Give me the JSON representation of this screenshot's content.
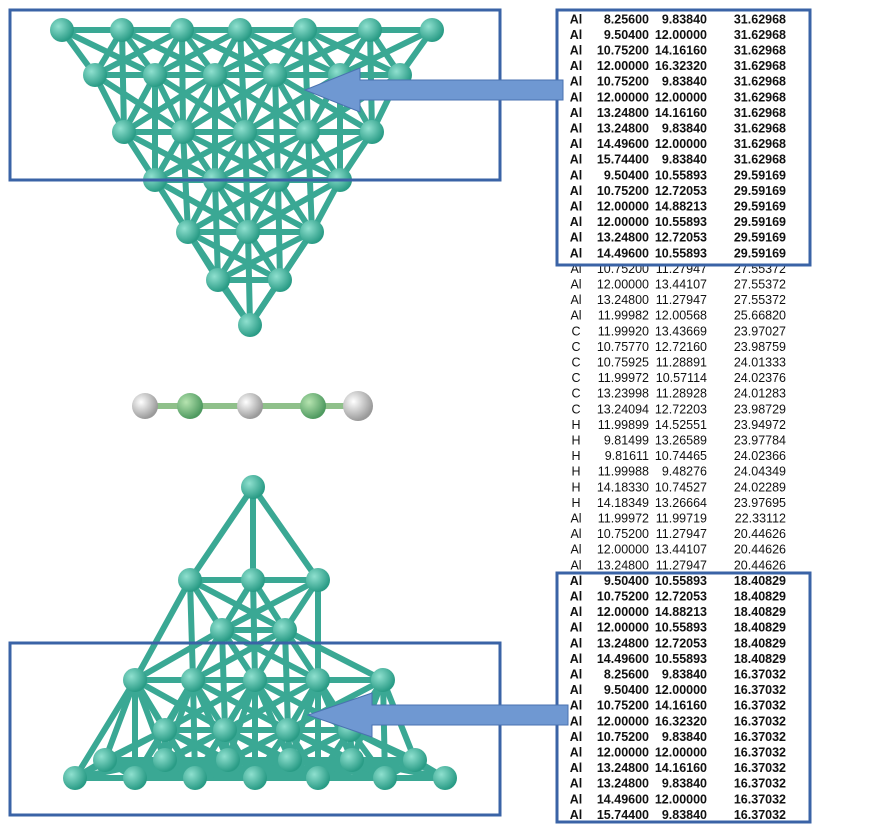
{
  "top_block": {
    "rows": [
      [
        "Al",
        "8.25600",
        "9.83840",
        "31.62968"
      ],
      [
        "Al",
        "9.50400",
        "12.00000",
        "31.62968"
      ],
      [
        "Al",
        "10.75200",
        "14.16160",
        "31.62968"
      ],
      [
        "Al",
        "12.00000",
        "16.32320",
        "31.62968"
      ],
      [
        "Al",
        "10.75200",
        "9.83840",
        "31.62968"
      ],
      [
        "Al",
        "12.00000",
        "12.00000",
        "31.62968"
      ],
      [
        "Al",
        "13.24800",
        "14.16160",
        "31.62968"
      ],
      [
        "Al",
        "13.24800",
        "9.83840",
        "31.62968"
      ],
      [
        "Al",
        "14.49600",
        "12.00000",
        "31.62968"
      ],
      [
        "Al",
        "15.74400",
        "9.83840",
        "31.62968"
      ],
      [
        "Al",
        "9.50400",
        "10.55893",
        "29.59169"
      ],
      [
        "Al",
        "10.75200",
        "12.72053",
        "29.59169"
      ],
      [
        "Al",
        "12.00000",
        "14.88213",
        "29.59169"
      ],
      [
        "Al",
        "12.00000",
        "10.55893",
        "29.59169"
      ],
      [
        "Al",
        "13.24800",
        "12.72053",
        "29.59169"
      ],
      [
        "Al",
        "14.49600",
        "10.55893",
        "29.59169"
      ]
    ]
  },
  "middle": {
    "rows": [
      [
        "Al",
        "10.75200",
        "11.27947",
        "27.55372"
      ],
      [
        "Al",
        "12.00000",
        "13.44107",
        "27.55372"
      ],
      [
        "Al",
        "13.24800",
        "11.27947",
        "27.55372"
      ],
      [
        "Al",
        "11.99982",
        "12.00568",
        "25.66820"
      ],
      [
        "C",
        "11.99920",
        "13.43669",
        "23.97027"
      ],
      [
        "C",
        "10.75770",
        "12.72160",
        "23.98759"
      ],
      [
        "C",
        "10.75925",
        "11.28891",
        "24.01333"
      ],
      [
        "C",
        "11.99972",
        "10.57114",
        "24.02376"
      ],
      [
        "C",
        "13.23998",
        "11.28928",
        "24.01283"
      ],
      [
        "C",
        "13.24094",
        "12.72203",
        "23.98729"
      ],
      [
        "H",
        "11.99899",
        "14.52551",
        "23.94972"
      ],
      [
        "H",
        "9.81499",
        "13.26589",
        "23.97784"
      ],
      [
        "H",
        "9.81611",
        "10.74465",
        "24.02366"
      ],
      [
        "H",
        "11.99988",
        "9.48276",
        "24.04349"
      ],
      [
        "H",
        "14.18330",
        "10.74527",
        "24.02289"
      ],
      [
        "H",
        "14.18349",
        "13.26664",
        "23.97695"
      ],
      [
        "Al",
        "11.99972",
        "11.99719",
        "22.33112"
      ],
      [
        "Al",
        "10.75200",
        "11.27947",
        "20.44626"
      ],
      [
        "Al",
        "12.00000",
        "13.44107",
        "20.44626"
      ],
      [
        "Al",
        "13.24800",
        "11.27947",
        "20.44626"
      ]
    ]
  },
  "bottom_block": {
    "rows": [
      [
        "Al",
        "9.50400",
        "10.55893",
        "18.40829"
      ],
      [
        "Al",
        "10.75200",
        "12.72053",
        "18.40829"
      ],
      [
        "Al",
        "12.00000",
        "14.88213",
        "18.40829"
      ],
      [
        "Al",
        "12.00000",
        "10.55893",
        "18.40829"
      ],
      [
        "Al",
        "13.24800",
        "12.72053",
        "18.40829"
      ],
      [
        "Al",
        "14.49600",
        "10.55893",
        "18.40829"
      ],
      [
        "Al",
        "8.25600",
        "9.83840",
        "16.37032"
      ],
      [
        "Al",
        "9.50400",
        "12.00000",
        "16.37032"
      ],
      [
        "Al",
        "10.75200",
        "14.16160",
        "16.37032"
      ],
      [
        "Al",
        "12.00000",
        "16.32320",
        "16.37032"
      ],
      [
        "Al",
        "10.75200",
        "9.83840",
        "16.37032"
      ],
      [
        "Al",
        "12.00000",
        "12.00000",
        "16.37032"
      ],
      [
        "Al",
        "13.24800",
        "14.16160",
        "16.37032"
      ],
      [
        "Al",
        "13.24800",
        "9.83840",
        "16.37032"
      ],
      [
        "Al",
        "14.49600",
        "12.00000",
        "16.37032"
      ],
      [
        "Al",
        "15.74400",
        "9.83840",
        "16.37032"
      ]
    ]
  }
}
